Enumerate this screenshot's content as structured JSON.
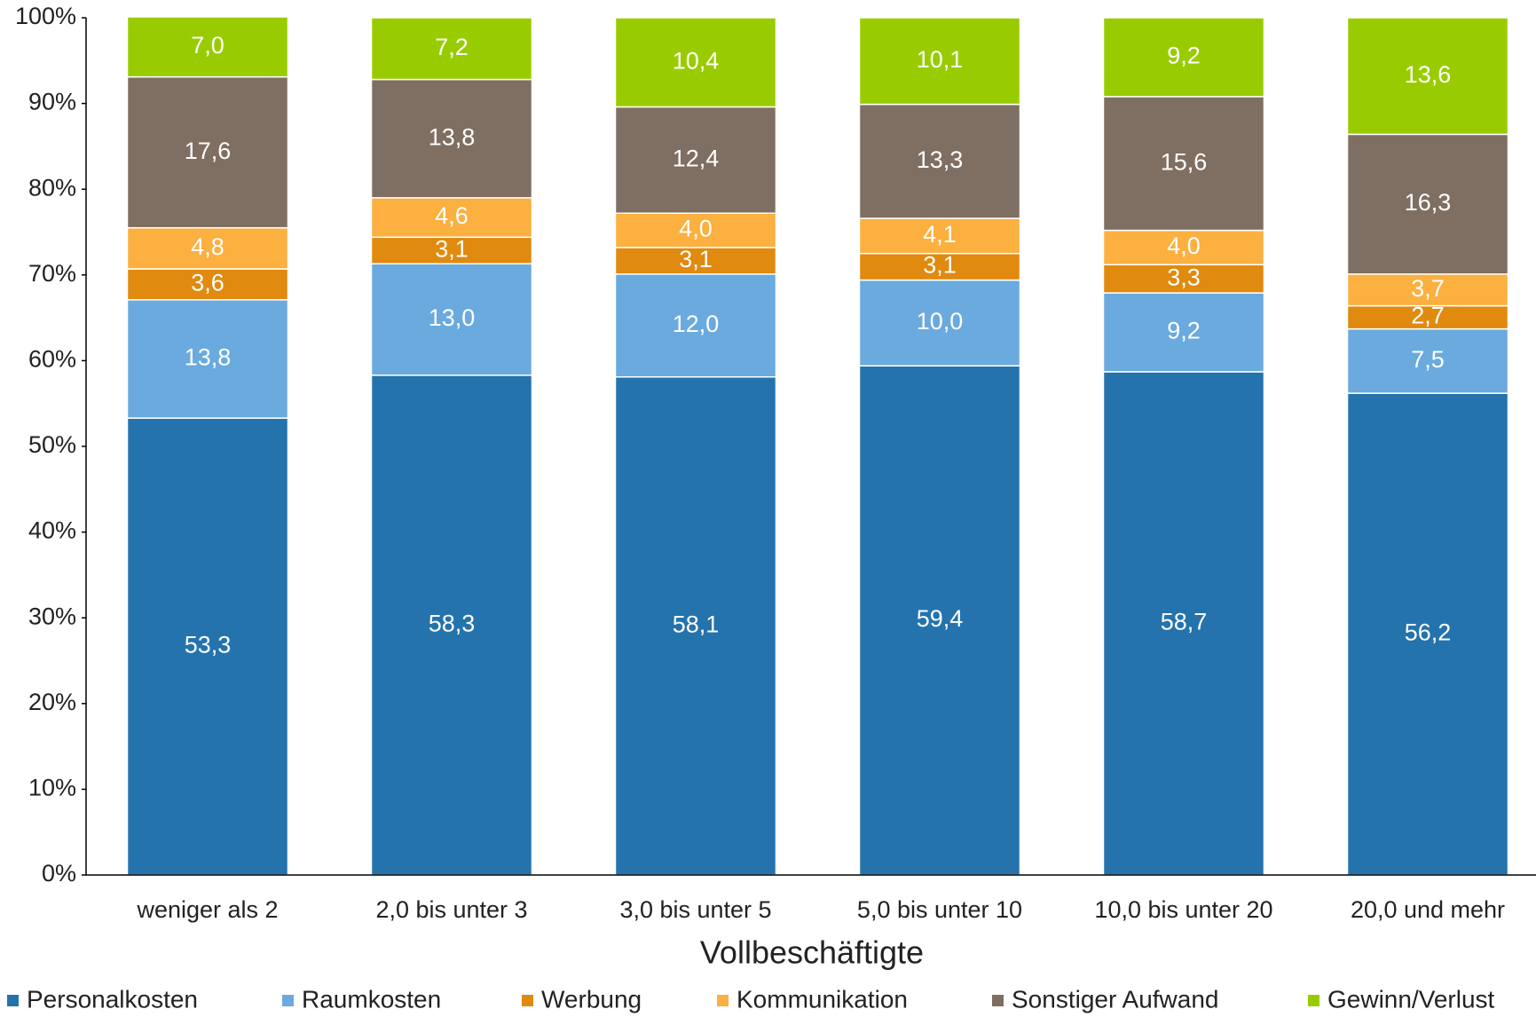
{
  "chart_data": {
    "type": "stacked_bar",
    "x_label": "Vollbeschäftigte",
    "categories": [
      "weniger als 2",
      "2,0 bis unter 3",
      "3,0 bis unter 5",
      "5,0 bis unter 10",
      "10,0 bis unter 20",
      "20,0 und mehr"
    ],
    "series": [
      {
        "name": "Personalkosten",
        "color": "#2573ad",
        "values": [
          53.3,
          58.3,
          58.1,
          59.4,
          58.7,
          56.2
        ],
        "value_labels": [
          "53,3",
          "58,3",
          "58,1",
          "59,4",
          "58,7",
          "56,2"
        ]
      },
      {
        "name": "Raumkosten",
        "color": "#6aaade",
        "values": [
          13.8,
          13.0,
          12.0,
          10.0,
          9.2,
          7.5
        ],
        "value_labels": [
          "13,8",
          "13,0",
          "12,0",
          "10,0",
          "9,2",
          "7,5"
        ]
      },
      {
        "name": "Werbung",
        "color": "#e08a0f",
        "values": [
          3.6,
          3.1,
          3.1,
          3.1,
          3.3,
          2.7
        ],
        "value_labels": [
          "3,6",
          "3,1",
          "3,1",
          "3,1",
          "3,3",
          "2,7"
        ]
      },
      {
        "name": "Kommunikation",
        "color": "#fbb040",
        "values": [
          4.8,
          4.6,
          4.0,
          4.1,
          4.0,
          3.7
        ],
        "value_labels": [
          "4,8",
          "4,6",
          "4,0",
          "4,1",
          "4,0",
          "3,7"
        ]
      },
      {
        "name": "Sonstiger Aufwand",
        "color": "#7f6f62",
        "values": [
          17.6,
          13.8,
          12.4,
          13.3,
          15.6,
          16.3
        ],
        "value_labels": [
          "17,6",
          "13,8",
          "12,4",
          "13,3",
          "15,6",
          "16,3"
        ]
      },
      {
        "name": "Gewinn/Verlust",
        "color": "#99cc00",
        "values": [
          7.0,
          7.2,
          10.4,
          10.1,
          9.2,
          13.6
        ],
        "value_labels": [
          "7,0",
          "7,2",
          "10,4",
          "10,1",
          "9,2",
          "13,6"
        ]
      }
    ],
    "ylim": [
      0,
      100
    ],
    "yticks": [
      {
        "value": 0,
        "label": "0%"
      },
      {
        "value": 10,
        "label": "10%"
      },
      {
        "value": 20,
        "label": "20%"
      },
      {
        "value": 30,
        "label": "30%"
      },
      {
        "value": 40,
        "label": "40%"
      },
      {
        "value": 50,
        "label": "50%"
      },
      {
        "value": 60,
        "label": "60%"
      },
      {
        "value": 70,
        "label": "70%"
      },
      {
        "value": 80,
        "label": "80%"
      },
      {
        "value": 90,
        "label": "90%"
      },
      {
        "value": 100,
        "label": "100%"
      }
    ],
    "grid": false,
    "legend": "bottom"
  }
}
